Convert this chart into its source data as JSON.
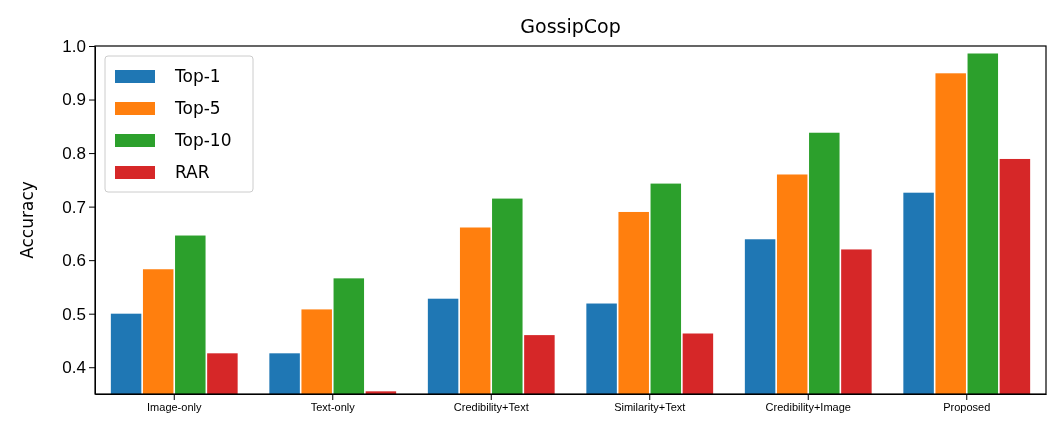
{
  "chart_data": {
    "type": "bar",
    "title": "GossipCop",
    "ylabel": "Accuracy",
    "categories": [
      "Image-only",
      "Text-only",
      "Credibility+Text",
      "Similarity+Text",
      "Credibility+Image",
      "Proposed"
    ],
    "series": [
      {
        "name": "Top-1",
        "color": "#1f77b4",
        "values": [
          0.5,
          0.426,
          0.528,
          0.519,
          0.639,
          0.726
        ]
      },
      {
        "name": "Top-5",
        "color": "#ff7f0e",
        "values": [
          0.583,
          0.508,
          0.661,
          0.69,
          0.76,
          0.949
        ]
      },
      {
        "name": "Top-10",
        "color": "#2ca02c",
        "values": [
          0.646,
          0.566,
          0.715,
          0.743,
          0.838,
          0.986
        ]
      },
      {
        "name": "RAR",
        "color": "#d62728",
        "values": [
          0.426,
          0.355,
          0.46,
          0.463,
          0.62,
          0.789
        ]
      }
    ],
    "ylim": [
      0.35,
      1.0
    ],
    "yticks": [
      0.4,
      0.5,
      0.6,
      0.7,
      0.8,
      0.9,
      {
        "value": 1.0,
        "label": "1.0"
      }
    ],
    "legend": "top left",
    "grid": false
  }
}
